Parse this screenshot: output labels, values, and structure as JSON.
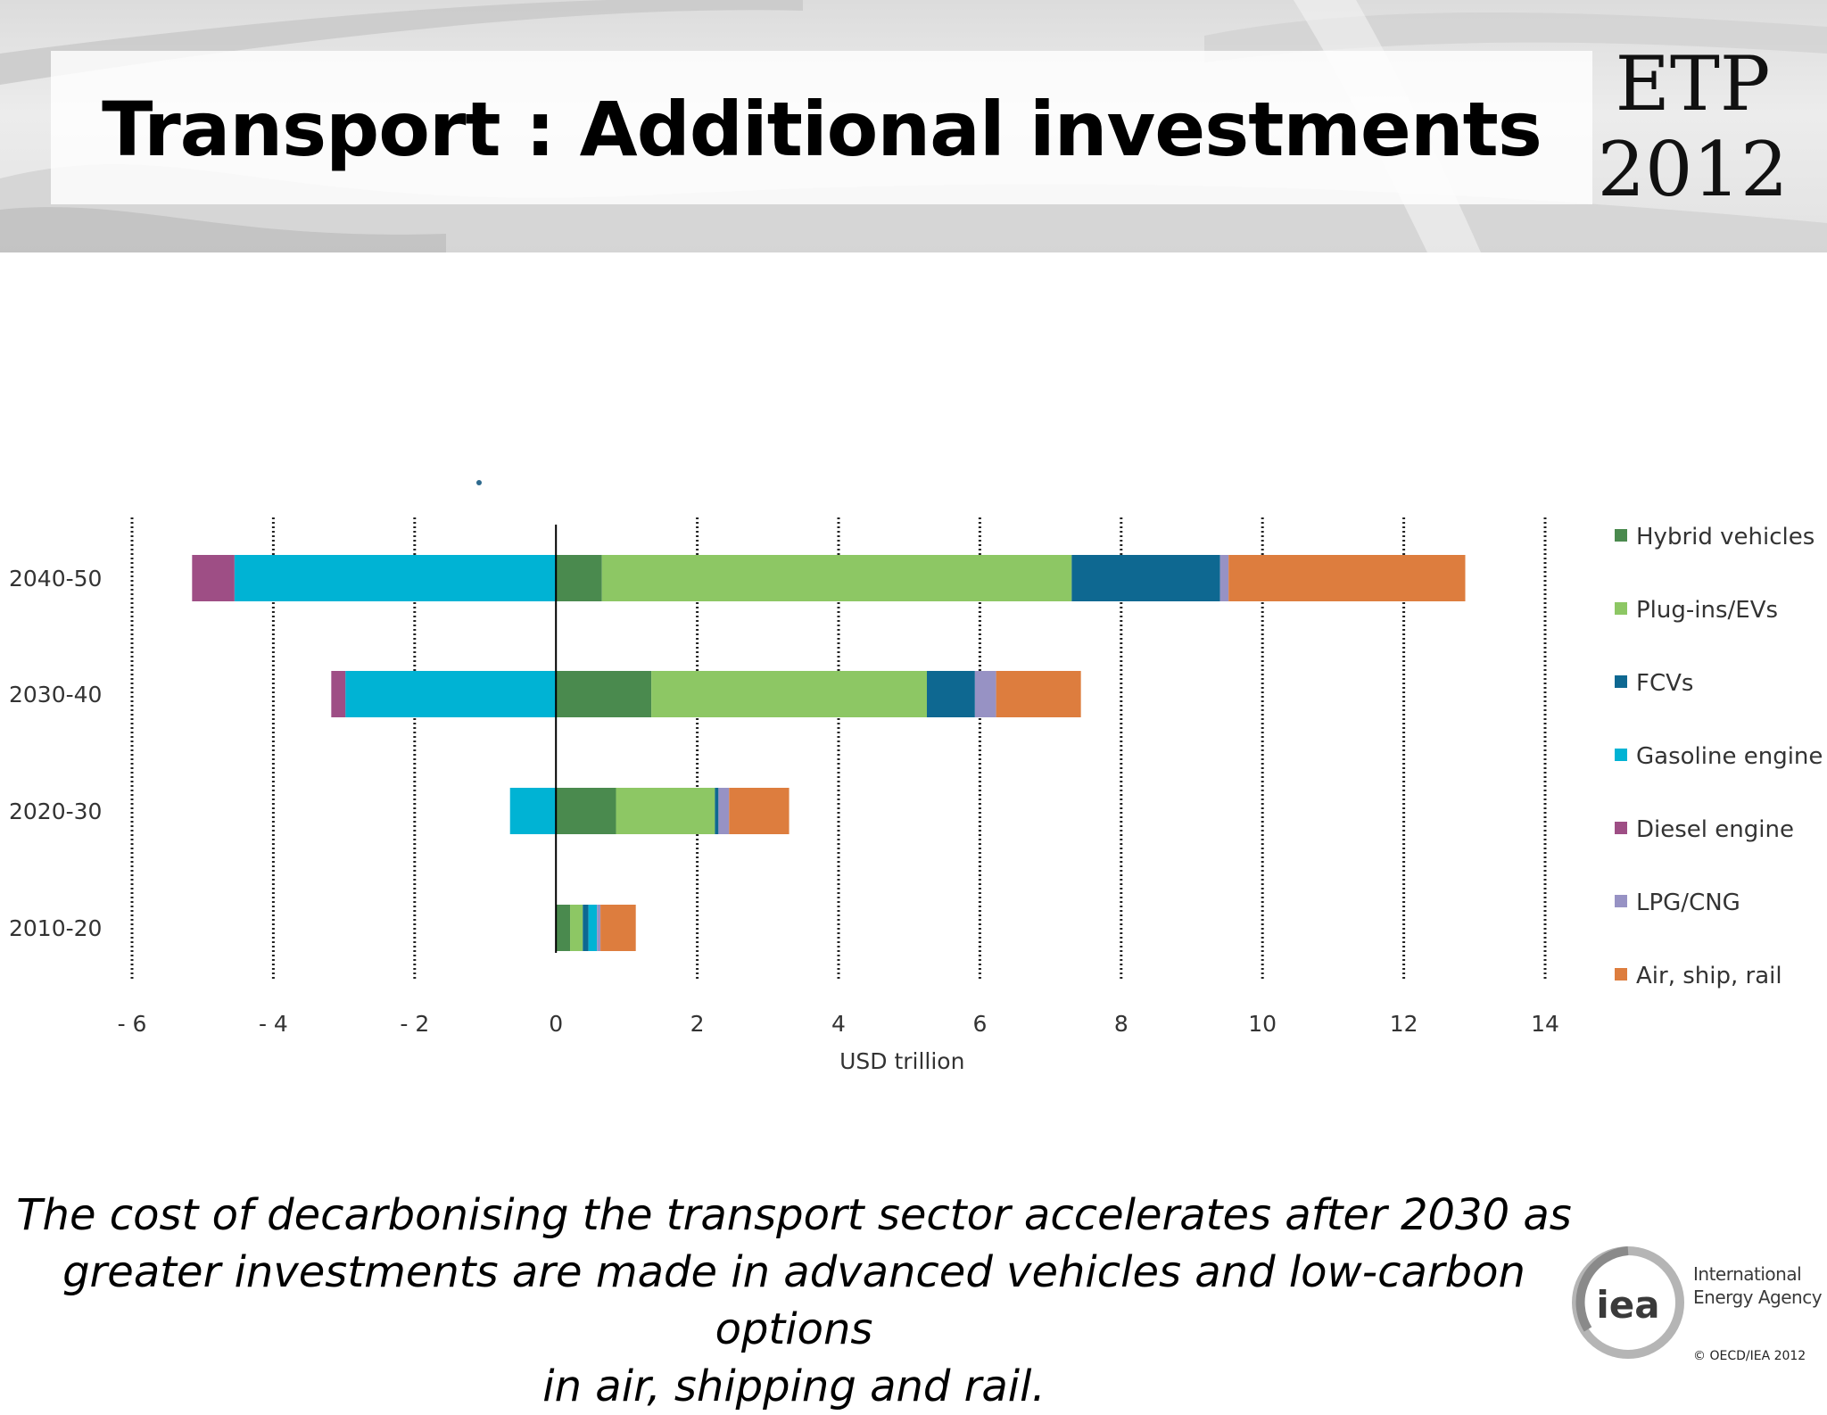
{
  "slide": {
    "title": "Transport : Additional investments",
    "logo": {
      "line1": "ETP",
      "line2": "2012"
    },
    "caption": [
      "The cost of decarbonising the transport sector  accelerates after 2030 as",
      "greater investments are made in advanced vehicles and low-carbon options",
      "in air, shipping and rail."
    ],
    "footer": {
      "org_mark": "iea",
      "org_name_line1": "International",
      "org_name_line2": "Energy Agency",
      "copyright": "© OECD/IEA 2012"
    }
  },
  "chart_data": {
    "type": "bar",
    "orientation": "horizontal",
    "stacked": true,
    "title": "",
    "xlabel": "USD trillion",
    "ylabel": "",
    "xlim": [
      -6,
      14
    ],
    "xticks": [
      -6,
      -4,
      -2,
      0,
      2,
      4,
      6,
      8,
      10,
      12,
      14
    ],
    "xtick_labels": [
      "- 6",
      "- 4",
      "- 2",
      "0",
      "2",
      "4",
      "6",
      "8",
      "10",
      "12",
      "14"
    ],
    "grid": "vertical dotted",
    "legend_position": "right",
    "categories": [
      "2040-50",
      "2030-40",
      "2020-30",
      "2010-20"
    ],
    "series": [
      {
        "name": "Hybrid vehicles",
        "color": "#4a8a4e",
        "values": [
          0.65,
          1.35,
          0.85,
          0.2
        ]
      },
      {
        "name": "Plug-ins/EVs",
        "color": "#8dc764",
        "values": [
          6.65,
          3.9,
          1.4,
          0.18
        ]
      },
      {
        "name": "FCVs",
        "color": "#0e6891",
        "values": [
          2.1,
          0.68,
          0.05,
          0.08
        ]
      },
      {
        "name": "Gasoline engine",
        "color": "#00b3d4",
        "values": [
          -4.55,
          -2.98,
          -0.65,
          0.12
        ]
      },
      {
        "name": "Diesel engine",
        "color": "#9e4e85",
        "values": [
          -0.6,
          -0.2,
          0,
          0
        ]
      },
      {
        "name": "LPG/CNG",
        "color": "#9792c4",
        "values": [
          0.12,
          0.3,
          0.15,
          0.05
        ]
      },
      {
        "name": "Air, ship, rail",
        "color": "#dd7d3e",
        "values": [
          3.35,
          1.2,
          0.85,
          0.5
        ]
      }
    ]
  }
}
